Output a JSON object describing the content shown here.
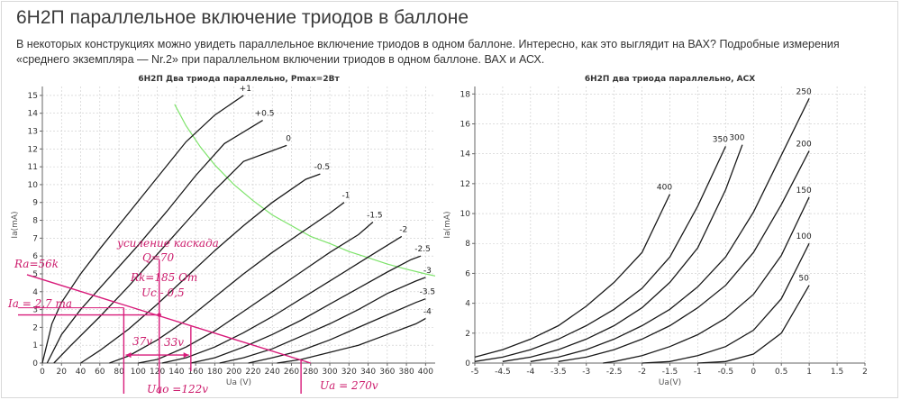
{
  "title": "6Н2П параллельное включение триодов в баллоне",
  "intro": "В некоторых конструкциях можно увидеть параллельное включение триодов в одном баллоне. Интересно, как это выглядит на ВАХ? Подробные измерения «среднего экземпляра — Nr.2» при параллельном включении триодов в одном баллоне. ВАХ и АСХ.",
  "colors": {
    "curve": "#1a1a1a",
    "pmax": "#7de36a",
    "annotation": "#d81b7a",
    "grid": "#c9c9c9"
  },
  "chart_data": [
    {
      "type": "line",
      "title": "6Н2П Два триода параллельно, Pmax=2Вт",
      "xlabel": "Ua (V)",
      "ylabel": "Ia(mA)",
      "xlim": [
        0,
        410
      ],
      "ylim": [
        0,
        15.5
      ],
      "xticks": [
        "0",
        "20",
        "40",
        "60",
        "80",
        "100",
        "120",
        "140",
        "160",
        "180",
        "200",
        "220",
        "240",
        "260",
        "280",
        "300",
        "320",
        "340",
        "360",
        "380",
        "400"
      ],
      "yticks": [
        "0",
        "1",
        "2",
        "3",
        "4",
        "5",
        "6",
        "7",
        "8",
        "9",
        "10",
        "11",
        "12",
        "13",
        "14",
        "15"
      ],
      "grid": true,
      "series": [
        {
          "name": "+1",
          "x": [
            0,
            10,
            20,
            40,
            60,
            90,
            120,
            150,
            180,
            210
          ],
          "y": [
            0,
            2.2,
            3.4,
            5.0,
            6.4,
            8.4,
            10.4,
            12.4,
            13.9,
            15.0
          ]
        },
        {
          "name": "+0.5",
          "x": [
            5,
            20,
            40,
            70,
            100,
            130,
            160,
            190,
            230
          ],
          "y": [
            0,
            1.6,
            3.0,
            4.8,
            6.6,
            8.5,
            10.5,
            12.3,
            13.6
          ]
        },
        {
          "name": "0",
          "x": [
            12,
            30,
            60,
            90,
            120,
            150,
            180,
            210,
            255
          ],
          "y": [
            0,
            1.0,
            2.6,
            4.3,
            6.1,
            7.9,
            9.7,
            11.3,
            12.2
          ]
        },
        {
          "name": "-0.5",
          "x": [
            40,
            60,
            90,
            120,
            150,
            180,
            210,
            240,
            275,
            290
          ],
          "y": [
            0,
            0.7,
            1.9,
            3.3,
            4.8,
            6.3,
            7.7,
            9.0,
            10.3,
            10.6
          ]
        },
        {
          "name": "-1",
          "x": [
            70,
            90,
            120,
            150,
            180,
            210,
            240,
            270,
            300,
            315
          ],
          "y": [
            0,
            0.4,
            1.3,
            2.4,
            3.7,
            5.0,
            6.2,
            7.3,
            8.4,
            9.0
          ]
        },
        {
          "name": "-1.5",
          "x": [
            100,
            120,
            150,
            180,
            210,
            240,
            270,
            300,
            330,
            345
          ],
          "y": [
            0,
            0.2,
            0.9,
            1.8,
            2.9,
            4.0,
            5.1,
            6.2,
            7.2,
            7.9
          ]
        },
        {
          "name": "-2",
          "x": [
            125,
            150,
            180,
            210,
            240,
            270,
            300,
            330,
            360,
            375
          ],
          "y": [
            0,
            0.3,
            0.9,
            1.7,
            2.6,
            3.6,
            4.6,
            5.6,
            6.6,
            7.1
          ]
        },
        {
          "name": "-2.5",
          "x": [
            155,
            180,
            210,
            240,
            270,
            300,
            330,
            360,
            385,
            395
          ],
          "y": [
            0,
            0.3,
            0.9,
            1.6,
            2.4,
            3.3,
            4.2,
            5.1,
            5.8,
            6.0
          ]
        },
        {
          "name": "-3",
          "x": [
            185,
            210,
            240,
            270,
            300,
            330,
            360,
            390,
            400
          ],
          "y": [
            0,
            0.3,
            0.8,
            1.5,
            2.2,
            3.0,
            3.9,
            4.6,
            4.8
          ]
        },
        {
          "name": "-3.5",
          "x": [
            215,
            240,
            270,
            300,
            330,
            360,
            390,
            400
          ],
          "y": [
            0,
            0.3,
            0.7,
            1.3,
            2.0,
            2.7,
            3.4,
            3.6
          ]
        },
        {
          "name": "-4",
          "x": [
            245,
            270,
            300,
            330,
            360,
            390,
            400
          ],
          "y": [
            0,
            0.2,
            0.6,
            1.0,
            1.6,
            2.2,
            2.5
          ]
        }
      ],
      "pmax_curve": {
        "x": [
          138,
          150,
          165,
          180,
          200,
          220,
          240,
          260,
          280,
          300,
          320,
          340,
          360,
          380,
          400,
          410
        ],
        "y": [
          14.5,
          13.3,
          12.1,
          11.1,
          10.0,
          9.1,
          8.3,
          7.7,
          7.1,
          6.7,
          6.25,
          5.9,
          5.55,
          5.26,
          5.0,
          4.88
        ]
      },
      "annotations": {
        "load_line": "Ra=56k",
        "cathode_resistor": "Rk=185 Om",
        "grid_bias": "Uc - 0,5",
        "gain_title": "усиление каскада",
        "gain_value": "Q=70",
        "ia_label": "Ia = 2,7 ma",
        "swing_left": "37v",
        "swing_right": "33v",
        "uao_label": "Uao =122v",
        "ua_label": "Ua = 270v"
      }
    },
    {
      "type": "line",
      "title": "6Н2П два триода параллельно, АСХ",
      "xlabel": "Ua(V)",
      "ylabel": "Ia(mA)",
      "xlim": [
        -5,
        2
      ],
      "ylim": [
        0,
        18.5
      ],
      "xticks": [
        "-5",
        "-4.5",
        "-4",
        "-3.5",
        "-3",
        "-2.5",
        "-2",
        "-1.5",
        "-1",
        "-0.5",
        "0",
        "0.5",
        "1",
        "1.5",
        "2"
      ],
      "yticks": [
        "0",
        "2",
        "4",
        "6",
        "8",
        "10",
        "12",
        "14",
        "16",
        "18"
      ],
      "grid": true,
      "series": [
        {
          "name": "400",
          "x": [
            -5,
            -4.5,
            -4,
            -3.5,
            -3,
            -2.5,
            -2,
            -1.5
          ],
          "y": [
            0.4,
            0.9,
            1.6,
            2.5,
            3.8,
            5.4,
            7.4,
            11.3
          ]
        },
        {
          "name": "350",
          "x": [
            -5,
            -4.5,
            -4,
            -3.5,
            -3,
            -2.5,
            -2,
            -1.5,
            -1,
            -0.5
          ],
          "y": [
            0.1,
            0.4,
            0.9,
            1.6,
            2.5,
            3.6,
            5.0,
            7.1,
            10.5,
            14.5
          ]
        },
        {
          "name": "300",
          "x": [
            -4.5,
            -4,
            -3.5,
            -3,
            -2.5,
            -2,
            -1.5,
            -1,
            -0.5,
            -0.2
          ],
          "y": [
            0.1,
            0.4,
            0.9,
            1.6,
            2.5,
            3.7,
            5.4,
            7.7,
            11.6,
            14.6
          ]
        },
        {
          "name": "250",
          "x": [
            -4,
            -3.5,
            -3,
            -2.5,
            -2,
            -1.5,
            -1,
            -0.5,
            0,
            0.5,
            1
          ],
          "y": [
            0.1,
            0.4,
            0.9,
            1.6,
            2.5,
            3.6,
            5.1,
            7.1,
            10.1,
            13.9,
            17.7
          ]
        },
        {
          "name": "200",
          "x": [
            -3.5,
            -3,
            -2.5,
            -2,
            -1.5,
            -1,
            -0.5,
            0,
            0.5,
            1
          ],
          "y": [
            0.1,
            0.4,
            0.9,
            1.6,
            2.5,
            3.7,
            5.2,
            7.4,
            10.6,
            14.2
          ]
        },
        {
          "name": "150",
          "x": [
            -2.7,
            -2.5,
            -2,
            -1.5,
            -1,
            -0.5,
            0,
            0.5,
            1
          ],
          "y": [
            0,
            0.1,
            0.5,
            1.1,
            1.9,
            3.0,
            4.6,
            7.2,
            11.1
          ]
        },
        {
          "name": "100",
          "x": [
            -2,
            -1.5,
            -1,
            -0.5,
            0,
            0.5,
            1
          ],
          "y": [
            0,
            0.1,
            0.5,
            1.1,
            2.2,
            4.3,
            8.0
          ]
        },
        {
          "name": "50",
          "x": [
            -1,
            -0.5,
            0,
            0.5,
            1
          ],
          "y": [
            0,
            0.1,
            0.6,
            2.0,
            5.2
          ]
        }
      ]
    }
  ]
}
